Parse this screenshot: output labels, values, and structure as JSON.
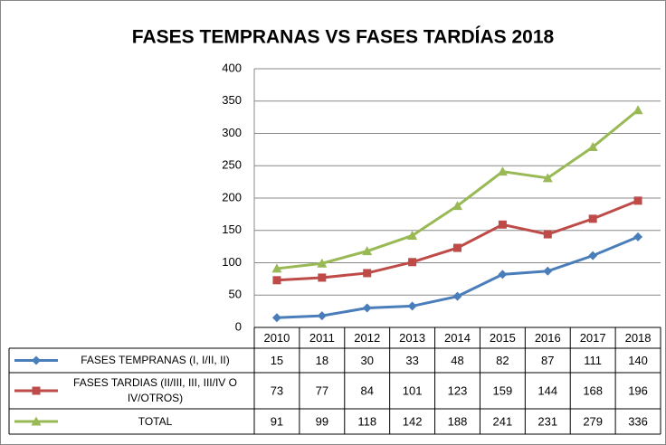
{
  "chart_data": {
    "type": "line",
    "title": "FASES TEMPRANAS VS FASES TARDÍAS 2018",
    "categories": [
      "2010",
      "2011",
      "2012",
      "2013",
      "2014",
      "2015",
      "2016",
      "2017",
      "2018"
    ],
    "series": [
      {
        "name": "FASES TEMPRANAS (I, I/II, II)",
        "color": "#4a7ebb",
        "marker": "diamond",
        "values": [
          15,
          18,
          30,
          33,
          48,
          82,
          87,
          111,
          140
        ]
      },
      {
        "name": "FASES TARDIAS (II/III, III, III/IV O IV/OTROS)",
        "color": "#be4b48",
        "marker": "square",
        "values": [
          73,
          77,
          84,
          101,
          123,
          159,
          144,
          168,
          196
        ]
      },
      {
        "name": "TOTAL",
        "color": "#98b954",
        "marker": "triangle",
        "values": [
          91,
          99,
          118,
          142,
          188,
          241,
          231,
          279,
          336
        ]
      }
    ],
    "ylim": [
      0,
      400
    ],
    "yticks": [
      0,
      50,
      100,
      150,
      200,
      250,
      300,
      350,
      400
    ],
    "grid": true
  }
}
